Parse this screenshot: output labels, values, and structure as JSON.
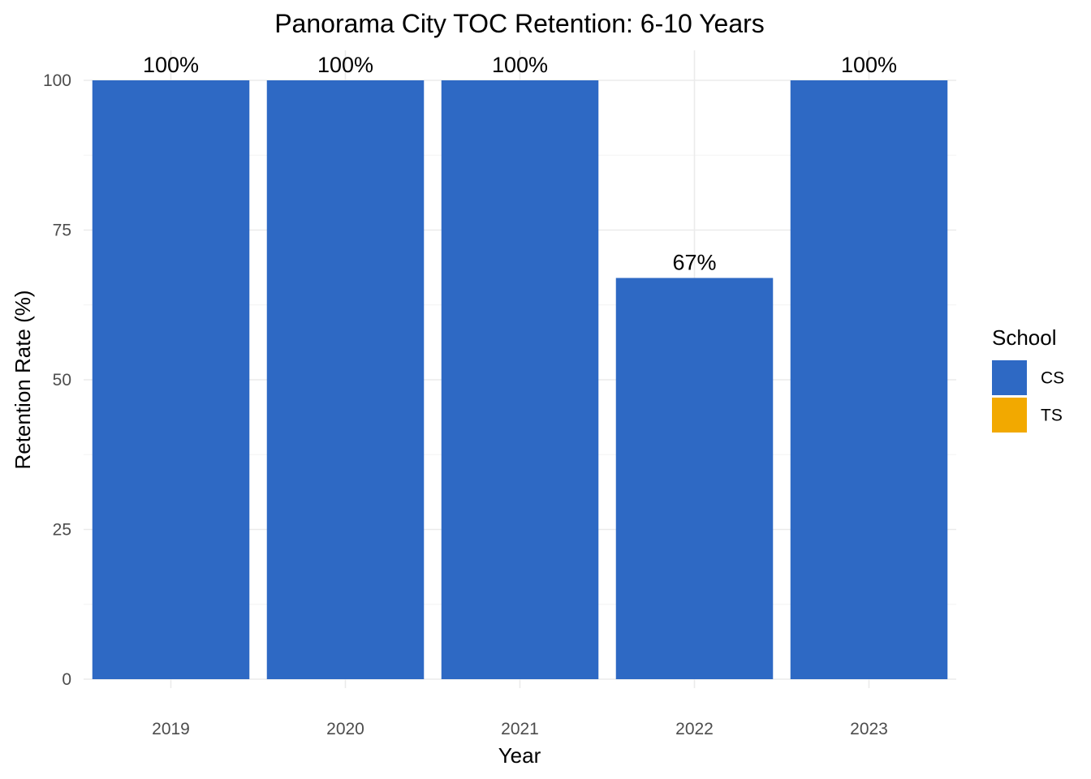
{
  "chart_data": {
    "type": "bar",
    "title": "Panorama City TOC Retention: 6-10 Years",
    "xlabel": "Year",
    "ylabel": "Retention Rate (%)",
    "categories": [
      "2019",
      "2020",
      "2021",
      "2022",
      "2023"
    ],
    "series": [
      {
        "name": "CS",
        "color": "#2e69c4",
        "values": [
          100,
          100,
          100,
          67,
          100
        ],
        "labels": [
          "100%",
          "100%",
          "100%",
          "67%",
          "100%"
        ]
      },
      {
        "name": "TS",
        "color": "#f2a900",
        "values": [
          null,
          null,
          null,
          null,
          null
        ],
        "labels": [
          "",
          "",
          "",
          "",
          ""
        ]
      }
    ],
    "ylim": [
      0,
      100
    ],
    "yticks": [
      0,
      25,
      50,
      75,
      100
    ],
    "grid": true,
    "legend": {
      "title": "School",
      "position": "right",
      "entries": [
        "CS",
        "TS"
      ]
    }
  }
}
